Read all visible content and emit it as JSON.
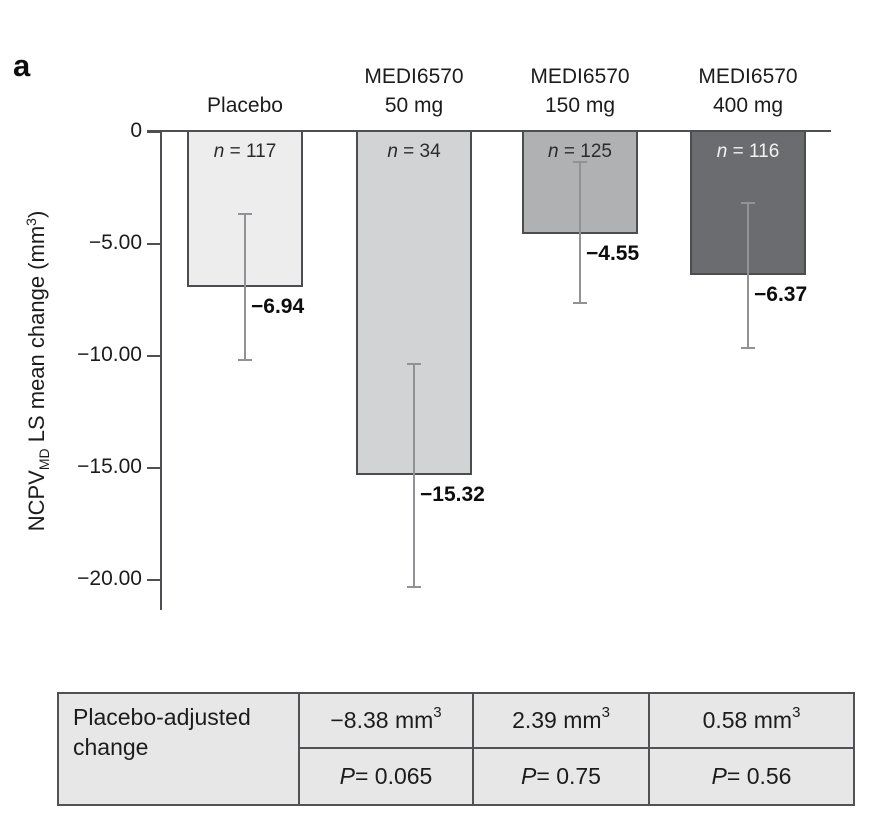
{
  "panel_label": "a",
  "colors": {
    "background": "#ffffff",
    "axis": "#4e4f52",
    "bar_border": "#4c4d50",
    "bar_fills": [
      "#ededee",
      "#d2d3d4",
      "#b0b1b3",
      "#6a6c6f"
    ],
    "error_bar": "#909296",
    "table_background": "#e7e7e8",
    "table_border": "#515256",
    "n_label_dark": "#2b2b2b",
    "n_label_light": "#f2f2f2"
  },
  "chart_data": {
    "type": "bar",
    "title": "",
    "xlabel": "",
    "ylabel_plain": "NCPV_MD LS mean change (mm3)",
    "ylabel": {
      "pre": "NCPV",
      "sub": "MD",
      "mid": " LS mean change (mm",
      "sup": "3",
      "post": ")"
    },
    "ylim": [
      -21.5,
      0.5
    ],
    "grid": false,
    "legend": "none",
    "yticks": [
      {
        "value": 0,
        "label": "0"
      },
      {
        "value": -5,
        "label": "−5.00"
      },
      {
        "value": -10,
        "label": "−10.00"
      },
      {
        "value": -15,
        "label": "−15.00"
      },
      {
        "value": -20,
        "label": "−20.00"
      }
    ],
    "categories": [
      "Placebo",
      "MEDI6570 50 mg",
      "MEDI6570 150 mg",
      "MEDI6570 400 mg"
    ],
    "values": [
      -6.94,
      -15.32,
      -4.55,
      -6.37
    ],
    "groups": [
      {
        "header_lines": [
          "Placebo"
        ],
        "n": 117,
        "n_label": {
          "italic": "n",
          "rest": " = 117"
        },
        "n_color": "#2b2b2b",
        "value": -6.94,
        "value_label": "−6.94",
        "error_high": -3.65,
        "error_low": -10.2
      },
      {
        "header_lines": [
          "MEDI6570",
          "50 mg"
        ],
        "n": 34,
        "n_label": {
          "italic": "n",
          "rest": " = 34"
        },
        "n_color": "#2b2b2b",
        "value": -15.32,
        "value_label": "−15.32",
        "error_high": -10.35,
        "error_low": -20.3
      },
      {
        "header_lines": [
          "MEDI6570",
          "150 mg"
        ],
        "n": 125,
        "n_label": {
          "italic": "n",
          "rest": " = 125"
        },
        "n_color": "#2b2b2b",
        "value": -4.55,
        "value_label": "−4.55",
        "error_high": -1.35,
        "error_low": -7.65
      },
      {
        "header_lines": [
          "MEDI6570",
          "400 mg"
        ],
        "n": 116,
        "n_label": {
          "italic": "n",
          "rest": " = 116"
        },
        "n_color": "#f2f2f2",
        "value": -6.37,
        "value_label": "−6.37",
        "error_high": -3.15,
        "error_low": -9.65
      }
    ]
  },
  "table": {
    "header_lines": [
      "Placebo-adjusted",
      "change"
    ],
    "cells": [
      {
        "value": "−8.38 mm",
        "sup": "3",
        "p_italic": "P",
        "p_rest": " = 0.065"
      },
      {
        "value": "2.39 mm",
        "sup": "3",
        "p_italic": "P",
        "p_rest": " = 0.75"
      },
      {
        "value": "0.58 mm",
        "sup": "3",
        "p_italic": "P",
        "p_rest": " = 0.56"
      }
    ]
  }
}
